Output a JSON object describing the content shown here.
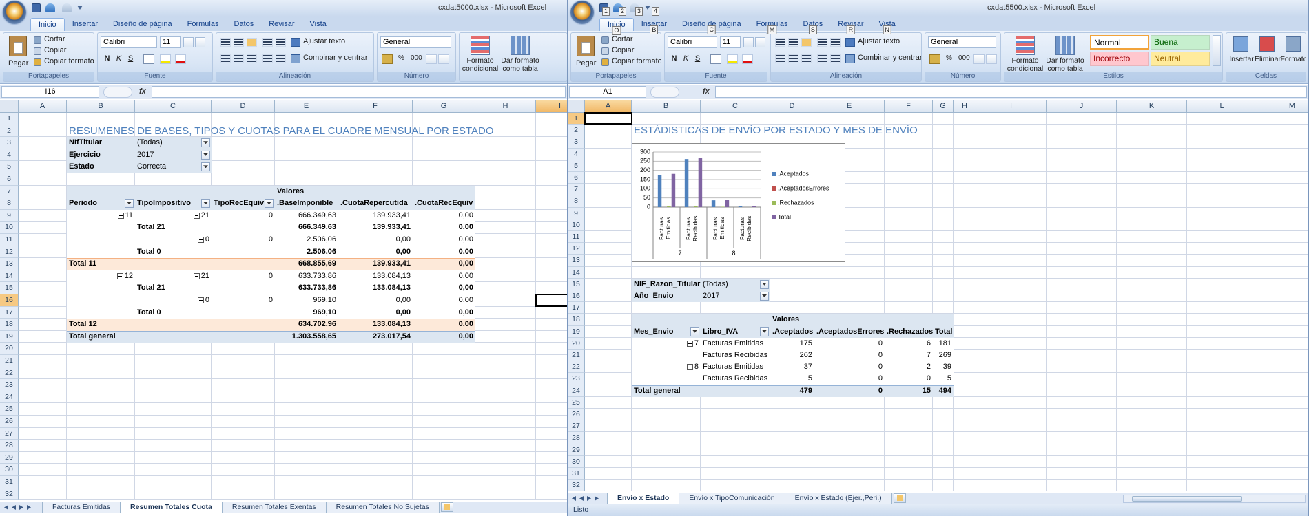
{
  "left": {
    "title": "cxdat5000.xlsx - Microsoft Excel",
    "tabs": [
      "Inicio",
      "Insertar",
      "Diseño de página",
      "Fórmulas",
      "Datos",
      "Revisar",
      "Vista"
    ],
    "ribbon": {
      "clipboard": {
        "paste": "Pegar",
        "items": [
          "Cortar",
          "Copiar",
          "Copiar formato"
        ],
        "label": "Portapapeles"
      },
      "font": {
        "name": "Calibri",
        "size": "11",
        "buttons": [
          "N",
          "K",
          "S"
        ],
        "label": "Fuente"
      },
      "alignment": {
        "items": [
          "Ajustar texto",
          "Combinar y centrar"
        ],
        "label": "Alineación"
      },
      "number": {
        "format": "General",
        "buttons": [
          "%",
          "000"
        ],
        "label": "Número"
      },
      "styles": {
        "items": [
          "Formato condicional",
          "Dar formato como tabla"
        ]
      }
    },
    "name_box": "I16",
    "fx": "fx",
    "columns": [
      "A",
      "B",
      "C",
      "D",
      "E",
      "F",
      "G",
      "H",
      "I"
    ],
    "row_numbers": [
      1,
      2,
      3,
      4,
      5,
      6,
      7,
      8,
      9,
      10,
      11,
      12,
      13,
      14,
      15,
      16,
      17,
      18,
      19,
      20,
      21,
      22,
      23,
      24,
      25,
      26,
      27,
      28,
      29,
      30,
      31,
      32
    ],
    "cells": [
      [],
      [
        null,
        "RESUMENES DE BASES, TIPOS Y CUOTAS PARA EL CUADRE MENSUAL POR ESTADO"
      ],
      [
        null,
        "NIfTitular",
        "(Todas)"
      ],
      [
        null,
        "Ejercicio",
        "2017"
      ],
      [
        null,
        "Estado",
        "Correcta"
      ],
      [],
      [
        null,
        null,
        null,
        null,
        "Valores"
      ],
      [
        null,
        "Periodo",
        "TipoImpositivo",
        "TipoRecEquiv",
        ".BaseImponible",
        ".CuotaRepercutida",
        ".CuotaRecEquiv"
      ],
      [
        null,
        "11",
        "21",
        "0",
        "666.349,63",
        "139.933,41",
        "0,00"
      ],
      [
        null,
        null,
        "Total 21",
        null,
        "666.349,63",
        "139.933,41",
        "0,00"
      ],
      [
        null,
        null,
        "0",
        "0",
        "2.506,06",
        "0,00",
        "0,00"
      ],
      [
        null,
        null,
        "Total 0",
        null,
        "2.506,06",
        "0,00",
        "0,00"
      ],
      [
        null,
        "Total 11",
        null,
        null,
        "668.855,69",
        "139.933,41",
        "0,00"
      ],
      [
        null,
        "12",
        "21",
        "0",
        "633.733,86",
        "133.084,13",
        "0,00"
      ],
      [
        null,
        null,
        "Total 21",
        null,
        "633.733,86",
        "133.084,13",
        "0,00"
      ],
      [
        null,
        null,
        "0",
        "0",
        "969,10",
        "0,00",
        "0,00"
      ],
      [
        null,
        null,
        "Total 0",
        null,
        "969,10",
        "0,00",
        "0,00"
      ],
      [
        null,
        "Total 12",
        null,
        null,
        "634.702,96",
        "133.084,13",
        "0,00"
      ],
      [
        null,
        "Total general",
        null,
        null,
        "1.303.558,65",
        "273.017,54",
        "0,00"
      ]
    ],
    "sheets": [
      "Facturas Emitidas",
      "Resumen Totales Cuota",
      "Resumen Totales Exentas",
      "Resumen Totales No Sujetas"
    ]
  },
  "right": {
    "title": "cxdat5500.xlsx - Microsoft Excel",
    "qat_keytips": [
      "1",
      "2",
      "3",
      "4"
    ],
    "tabs": [
      "Inicio",
      "Insertar",
      "Diseño de página",
      "Fórmulas",
      "Datos",
      "Revisar",
      "Vista"
    ],
    "tab_keytips": [
      "O",
      "B",
      "C",
      "M",
      "S",
      "R",
      "N"
    ],
    "ribbon": {
      "clipboard": {
        "paste": "Pegar",
        "items": [
          "Cortar",
          "Copiar",
          "Copiar formato"
        ],
        "label": "Portapapeles"
      },
      "font": {
        "name": "Calibri",
        "size": "11",
        "buttons": [
          "N",
          "K",
          "S"
        ],
        "label": "Fuente"
      },
      "alignment": {
        "items": [
          "Ajustar texto",
          "Combinar y centrar"
        ],
        "label": "Alineación"
      },
      "number": {
        "format": "General",
        "buttons": [
          "%",
          "000"
        ],
        "label": "Número"
      },
      "styles": {
        "items": [
          "Formato condicional",
          "Dar formato como tabla"
        ],
        "gallery": [
          "Normal",
          "Buena",
          "Incorrecto",
          "Neutral"
        ],
        "label": "Estilos"
      },
      "cells": {
        "items": [
          "Insertar",
          "Eliminar",
          "Formato"
        ],
        "label": "Celdas"
      }
    },
    "name_box": "A1",
    "fx": "fx",
    "columns": [
      "A",
      "B",
      "C",
      "D",
      "E",
      "F",
      "G",
      "H",
      "I",
      "J",
      "K",
      "L",
      "M"
    ],
    "row_numbers": [
      1,
      2,
      3,
      4,
      5,
      6,
      7,
      8,
      9,
      10,
      11,
      12,
      13,
      14,
      15,
      16,
      17,
      18,
      19,
      20,
      21,
      22,
      23,
      24,
      25,
      26,
      27,
      28,
      29,
      30,
      31,
      32
    ],
    "cells": [
      [],
      [
        null,
        "ESTÁDISTICAS DE ENVÍO POR ESTADO Y MES DE ENVÍO"
      ],
      [],
      [],
      [],
      [],
      [],
      [],
      [],
      [],
      [],
      [],
      [],
      [],
      [
        null,
        "NIF_Razon_Titular",
        "(Todas)"
      ],
      [
        null,
        "Año_Envio",
        "2017"
      ],
      [],
      [
        null,
        null,
        null,
        "Valores"
      ],
      [
        null,
        "Mes_Envio",
        "Libro_IVA",
        ".Aceptados",
        ".AceptadosErrores",
        ".Rechazados",
        "Total"
      ],
      [
        null,
        "7",
        "Facturas Emitidas",
        "175",
        "0",
        "6",
        "181"
      ],
      [
        null,
        null,
        "Facturas Recibidas",
        "262",
        "0",
        "7",
        "269"
      ],
      [
        null,
        "8",
        "Facturas Emitidas",
        "37",
        "0",
        "2",
        "39"
      ],
      [
        null,
        null,
        "Facturas Recibidas",
        "5",
        "0",
        "0",
        "5"
      ],
      [
        null,
        "Total general",
        null,
        "479",
        "0",
        "15",
        "494"
      ]
    ],
    "sheets": [
      "Envío x Estado",
      "Envío x TipoComunicación",
      "Envío x Estado (Ejer.,Peri.)"
    ],
    "status": "Listo"
  },
  "chart_data": {
    "type": "bar",
    "categories": [
      "Facturas Emitidas",
      "Facturas Recibidas",
      "Facturas Emitidas",
      "Facturas Recibidas"
    ],
    "group_labels": [
      "7",
      "8"
    ],
    "series": [
      {
        "name": ".Aceptados",
        "color": "#4f81bd",
        "values": [
          175,
          262,
          37,
          5
        ]
      },
      {
        "name": ".AceptadosErrores",
        "color": "#c0504d",
        "values": [
          0,
          0,
          0,
          0
        ]
      },
      {
        "name": ".Rechazados",
        "color": "#9bbb59",
        "values": [
          6,
          7,
          2,
          0
        ]
      },
      {
        "name": "Total",
        "color": "#8064a2",
        "values": [
          181,
          269,
          39,
          5
        ]
      }
    ],
    "ylim": [
      0,
      300
    ],
    "yticks": [
      0,
      50,
      100,
      150,
      200,
      250,
      300
    ],
    "grid": true,
    "legend": "right"
  }
}
